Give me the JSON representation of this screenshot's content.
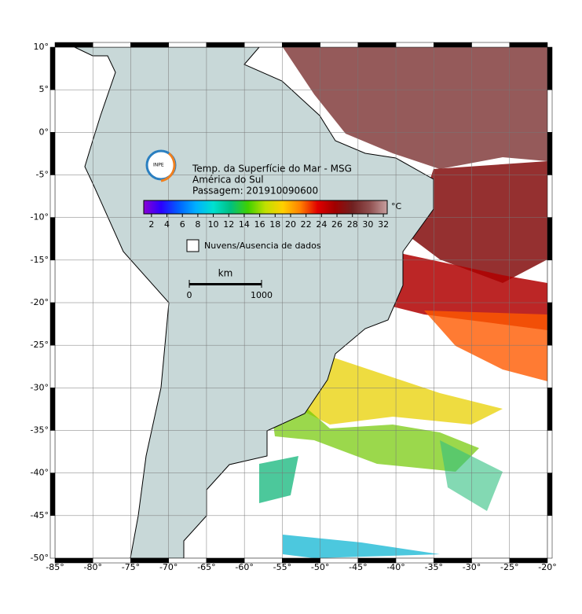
{
  "title": "Temp. da Superfície do Mar - MSG",
  "region": "América do Sul",
  "pass": "Passagem: 201910090600",
  "colorbar": {
    "unit": "°C",
    "lim": [
      1,
      32.5
    ],
    "ticks": [
      2,
      4,
      6,
      8,
      10,
      12,
      14,
      16,
      18,
      20,
      22,
      24,
      26,
      28,
      30,
      32
    ],
    "colors": [
      "#8a00d4",
      "#2a00ff",
      "#0060ff",
      "#00b0ff",
      "#00e0d0",
      "#00c080",
      "#40d000",
      "#c0e000",
      "#ffd000",
      "#ff8000",
      "#e00000",
      "#a00000",
      "#702020",
      "#905050",
      "#c8a0a0"
    ]
  },
  "legend": "Nuvens/Ausencia de dados",
  "scale": {
    "unit": "km",
    "ticks": [
      0,
      1000
    ]
  },
  "map": {
    "xlim": [
      -85,
      -20
    ],
    "ylim": [
      -50,
      10
    ],
    "xticks": [
      {
        "value": -85,
        "label": "-85°"
      },
      {
        "value": -80,
        "label": "-80°"
      },
      {
        "value": -75,
        "label": "-75°"
      },
      {
        "value": -70,
        "label": "-70°"
      },
      {
        "value": -65,
        "label": "-65°"
      },
      {
        "value": -60,
        "label": "-60°"
      },
      {
        "value": -55,
        "label": "-55°"
      },
      {
        "value": -50,
        "label": "-50°"
      },
      {
        "value": -45,
        "label": "-45°"
      },
      {
        "value": -40,
        "label": "-40°"
      },
      {
        "value": -35,
        "label": "-35°"
      },
      {
        "value": -30,
        "label": "-30°"
      },
      {
        "value": -25,
        "label": "-25°"
      },
      {
        "value": -20,
        "label": "-20°"
      }
    ],
    "yticks": [
      {
        "value": 10,
        "label": "10°"
      },
      {
        "value": 5,
        "label": "5°"
      },
      {
        "value": 0,
        "label": "0°"
      },
      {
        "value": -5,
        "label": "-5°"
      },
      {
        "value": -10,
        "label": "-10°"
      },
      {
        "value": -15,
        "label": "-15°"
      },
      {
        "value": -20,
        "label": "-20°"
      },
      {
        "value": -25,
        "label": "-25°"
      },
      {
        "value": -30,
        "label": "-30°"
      },
      {
        "value": -35,
        "label": "-35°"
      },
      {
        "value": -40,
        "label": "-40°"
      },
      {
        "value": -45,
        "label": "-45°"
      },
      {
        "value": -50,
        "label": "-50°"
      }
    ]
  }
}
